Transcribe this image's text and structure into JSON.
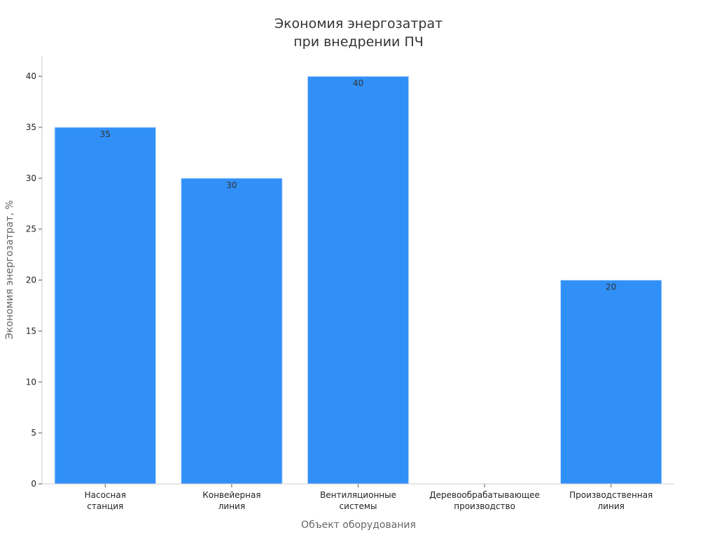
{
  "chart_data": {
    "type": "bar",
    "title": "Экономия энергозатрат при внедрении ПЧ",
    "title_lines": [
      "Экономия энергозатрат",
      "при внедрении ПЧ"
    ],
    "xlabel": "Объект оборудования",
    "ylabel": "Экономия энергозатрат, %",
    "categories": [
      [
        "Насосная",
        "станция"
      ],
      [
        "Конвейерная",
        "линия"
      ],
      [
        "Вентиляционные",
        "системы"
      ],
      [
        "Деревообрабатывающее",
        "производство"
      ],
      [
        "Производственная",
        "линия"
      ]
    ],
    "values": [
      35,
      30,
      40,
      0,
      20
    ],
    "data_labels": [
      "35",
      "30",
      "40",
      "",
      "20"
    ],
    "yticks": [
      0,
      5,
      10,
      15,
      20,
      25,
      30,
      35,
      40
    ],
    "ylim": [
      0,
      42
    ],
    "grid": false,
    "legend": "none",
    "bar_color": "#3090f8"
  }
}
